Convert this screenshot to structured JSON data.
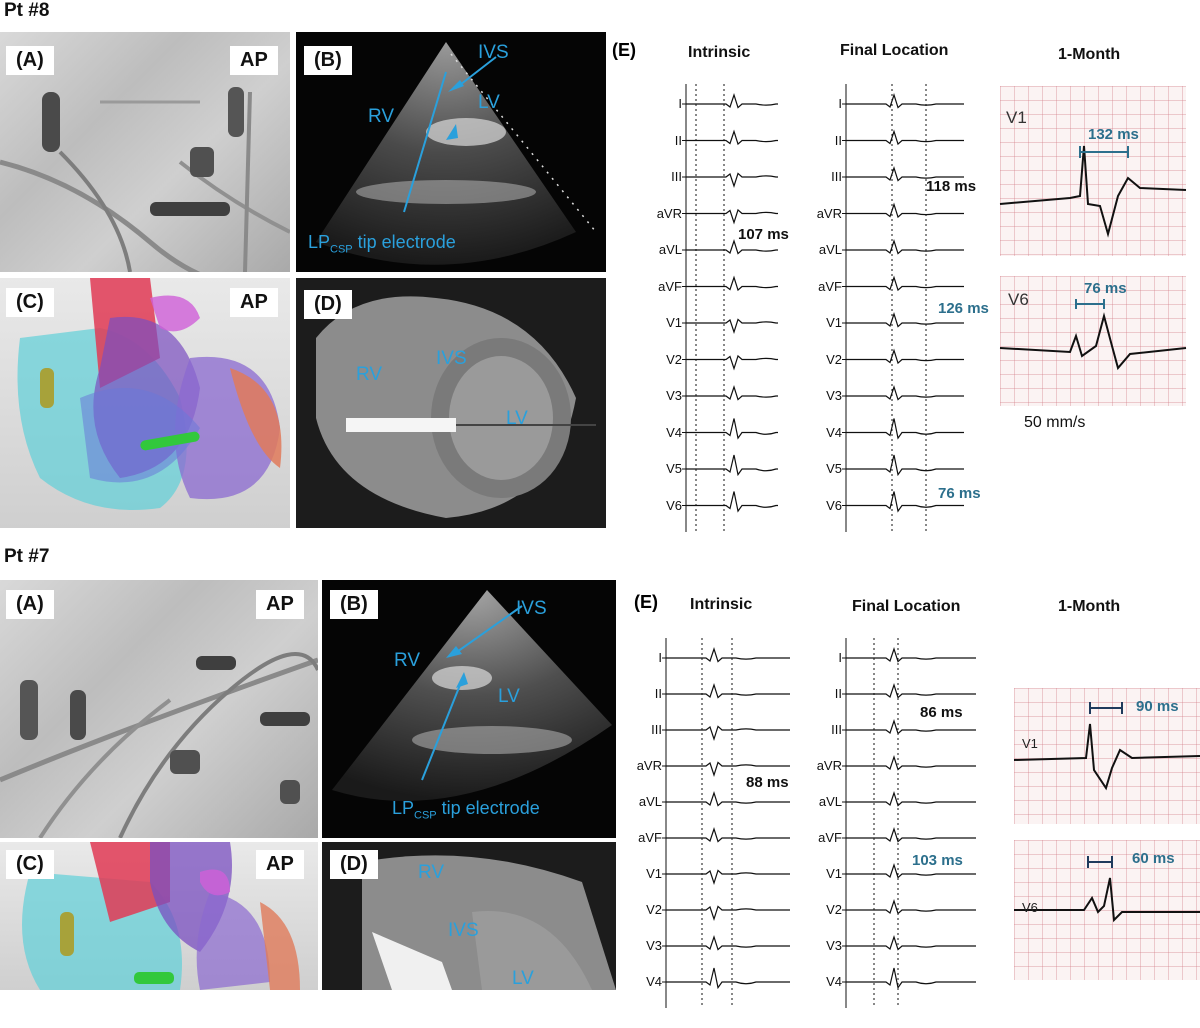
{
  "top": {
    "patient": "Pt #8",
    "panels": {
      "a": "(A)",
      "b": "(B)",
      "c": "(C)",
      "d": "(D)",
      "e": "(E)"
    },
    "ap": "AP",
    "echo_labels": {
      "ivs": "IVS",
      "rv": "RV",
      "lv": "LV",
      "tip_main": "LP",
      "tip_sub": "CSP",
      "tip_rest": " tip electrode"
    },
    "ct_labels": {
      "rv": "RV",
      "ivs": "IVS",
      "lv": "LV"
    },
    "ecg_titles": {
      "intrinsic": "Intrinsic",
      "final": "Final Location",
      "month": "1-Month"
    },
    "intrinsic_qrs": "107 ms",
    "final_qrs": "118 ms",
    "final_v1": "126 ms",
    "final_v6": "76 ms",
    "month_v1_label": "V1",
    "month_v1": "132 ms",
    "month_v6_label": "V6",
    "month_v6": "76 ms",
    "speed": "50 mm/s"
  },
  "bottom": {
    "patient": "Pt #7",
    "panels": {
      "a": "(A)",
      "b": "(B)",
      "c": "(C)",
      "d": "(D)",
      "e": "(E)"
    },
    "ap": "AP",
    "echo_labels": {
      "ivs": "IVS",
      "rv": "RV",
      "lv": "LV",
      "tip_main": "LP",
      "tip_sub": "CSP",
      "tip_rest": " tip electrode"
    },
    "ct_labels": {
      "rv": "RV",
      "ivs": "IVS",
      "lv": "LV"
    },
    "ecg_titles": {
      "intrinsic": "Intrinsic",
      "final": "Final Location",
      "month": "1-Month"
    },
    "intrinsic_qrs": "88 ms",
    "final_qrs": "86 ms",
    "final_v1": "103 ms",
    "month_v1_label": "V1",
    "month_v1": "90 ms",
    "month_v6_label": "V6",
    "month_v6": "60 ms"
  },
  "leads": [
    "I",
    "II",
    "III",
    "aVR",
    "aVL",
    "aVF",
    "V1",
    "V2",
    "V3",
    "V4",
    "V5",
    "V6"
  ],
  "leads_bottom": [
    "I",
    "II",
    "III",
    "aVR",
    "aVL",
    "aVF",
    "V1",
    "V2",
    "V3",
    "V4"
  ]
}
